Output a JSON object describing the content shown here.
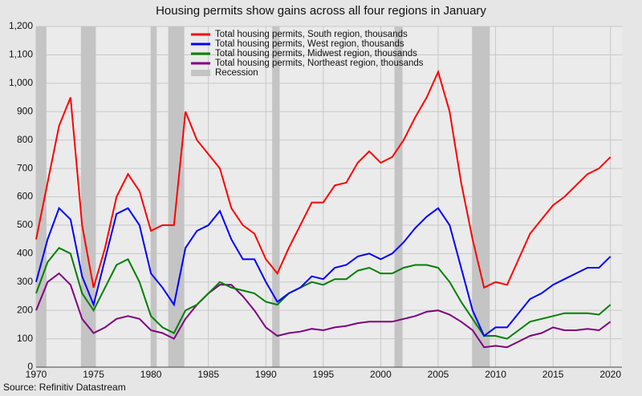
{
  "chart_data": {
    "type": "line",
    "title": "Housing permits show gains across all four regions in January",
    "source": "Source: Refinitiv Datastream",
    "x": [
      1970,
      1971,
      1972,
      1973,
      1974,
      1975,
      1976,
      1977,
      1978,
      1979,
      1980,
      1981,
      1982,
      1983,
      1984,
      1985,
      1986,
      1987,
      1988,
      1989,
      1990,
      1991,
      1992,
      1993,
      1994,
      1995,
      1996,
      1997,
      1998,
      1999,
      2000,
      2001,
      2002,
      2003,
      2004,
      2005,
      2006,
      2007,
      2008,
      2009,
      2010,
      2011,
      2012,
      2013,
      2014,
      2015,
      2016,
      2017,
      2018,
      2019,
      2020
    ],
    "series": [
      {
        "name": "Total housing permits, South region, thousands",
        "color": "#ff0000",
        "values": [
          450,
          650,
          850,
          950,
          500,
          280,
          420,
          600,
          680,
          620,
          480,
          500,
          500,
          900,
          800,
          750,
          700,
          560,
          500,
          470,
          380,
          330,
          420,
          500,
          580,
          580,
          640,
          650,
          720,
          760,
          720,
          740,
          800,
          880,
          950,
          1040,
          900,
          650,
          450,
          280,
          300,
          290,
          380,
          470,
          520,
          570,
          600,
          640,
          680,
          700,
          740
        ]
      },
      {
        "name": "Total housing permits, West region, thousands",
        "color": "#0000ff",
        "values": [
          300,
          450,
          560,
          520,
          320,
          220,
          380,
          540,
          560,
          500,
          330,
          280,
          220,
          420,
          480,
          500,
          550,
          450,
          380,
          380,
          300,
          230,
          260,
          280,
          320,
          310,
          350,
          360,
          390,
          400,
          380,
          400,
          440,
          490,
          530,
          560,
          500,
          350,
          200,
          110,
          140,
          140,
          190,
          240,
          260,
          290,
          310,
          330,
          350,
          350,
          390
        ]
      },
      {
        "name": "Total housing permits, Midwest region, thousands",
        "color": "#008000",
        "values": [
          260,
          370,
          420,
          400,
          260,
          200,
          280,
          360,
          380,
          300,
          180,
          140,
          120,
          200,
          220,
          260,
          300,
          280,
          270,
          260,
          230,
          220,
          260,
          280,
          300,
          290,
          310,
          310,
          340,
          350,
          330,
          330,
          350,
          360,
          360,
          350,
          300,
          230,
          170,
          110,
          110,
          100,
          130,
          160,
          170,
          180,
          190,
          190,
          190,
          185,
          220
        ]
      },
      {
        "name": "Total housing permits, Northeast region, thousands",
        "color": "#800080",
        "values": [
          200,
          300,
          330,
          290,
          170,
          120,
          140,
          170,
          180,
          170,
          130,
          120,
          100,
          170,
          220,
          260,
          290,
          290,
          250,
          200,
          140,
          110,
          120,
          125,
          135,
          130,
          140,
          145,
          155,
          160,
          160,
          160,
          170,
          180,
          195,
          200,
          185,
          160,
          130,
          70,
          75,
          70,
          90,
          110,
          120,
          140,
          130,
          130,
          135,
          130,
          160
        ]
      }
    ],
    "recession_label": "Recession",
    "recession_color": "#c4c4c4",
    "recessions": [
      [
        1969.95,
        1970.9
      ],
      [
        1973.9,
        1975.2
      ],
      [
        1980.0,
        1980.5
      ],
      [
        1981.5,
        1982.9
      ],
      [
        1990.55,
        1991.2
      ],
      [
        2001.2,
        2001.9
      ],
      [
        2007.95,
        2009.5
      ]
    ],
    "xlim": [
      1970,
      2021
    ],
    "xticks": [
      1970,
      1975,
      1980,
      1985,
      1990,
      1995,
      2000,
      2005,
      2010,
      2015,
      2020
    ],
    "ylim": [
      0,
      1200
    ],
    "yticks": [
      0,
      100,
      200,
      300,
      400,
      500,
      600,
      700,
      800,
      900,
      {
        "value": 1000,
        "label": "1,000"
      },
      {
        "value": 1100,
        "label": "1,100"
      },
      {
        "value": 1200,
        "label": "1,200"
      }
    ],
    "grid": true
  }
}
